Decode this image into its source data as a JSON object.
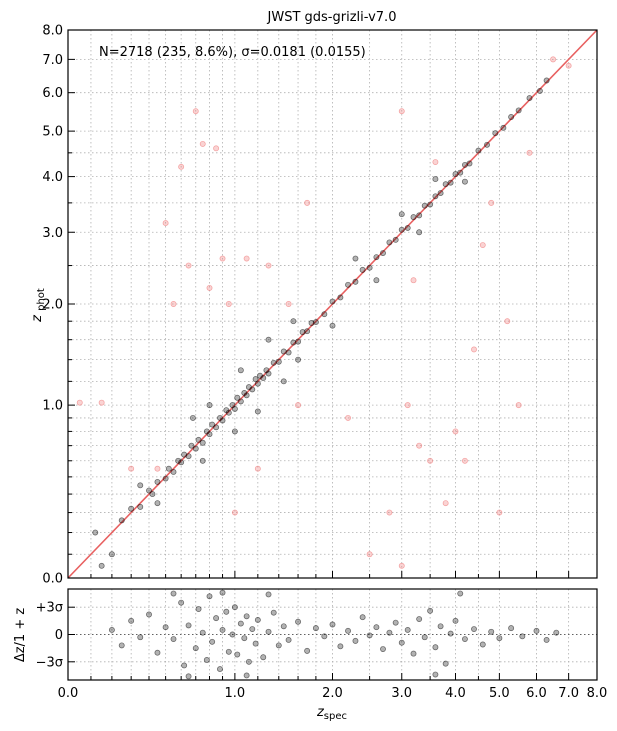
{
  "chart_data": [
    {
      "type": "scatter",
      "title": "JWST gds-grizli-v7.0",
      "annotation": "N=2718 (235,  8.6%), σ=0.0181 (0.0155)",
      "xlabel": "z_spec",
      "ylabel": "z_phot",
      "axis_scale": "log(1+z)",
      "xlim": [
        0,
        8
      ],
      "ylim": [
        0,
        8
      ],
      "x_tick_labels": [
        "0.0",
        "1.0",
        "2.0",
        "3.0",
        "4.0",
        "5.0",
        "6.0",
        "7.0",
        "8.0"
      ],
      "y_tick_labels": [
        "0.0",
        "1.0",
        "2.0",
        "3.0",
        "4.0",
        "5.0",
        "6.0",
        "7.0",
        "8.0"
      ],
      "grid": true,
      "one_to_one_line": {
        "color": "#e86060"
      },
      "series": [
        {
          "role": "good",
          "color": "#000000",
          "points": [
            [
              0.25,
              0.26
            ],
            [
              0.3,
              0.32
            ],
            [
              0.35,
              0.33
            ],
            [
              0.4,
              0.42
            ],
            [
              0.42,
              0.4
            ],
            [
              0.45,
              0.47
            ],
            [
              0.5,
              0.49
            ],
            [
              0.52,
              0.55
            ],
            [
              0.55,
              0.53
            ],
            [
              0.58,
              0.6
            ],
            [
              0.6,
              0.59
            ],
            [
              0.62,
              0.64
            ],
            [
              0.65,
              0.63
            ],
            [
              0.67,
              0.7
            ],
            [
              0.7,
              0.68
            ],
            [
              0.72,
              0.74
            ],
            [
              0.75,
              0.72
            ],
            [
              0.78,
              0.8
            ],
            [
              0.8,
              0.78
            ],
            [
              0.82,
              0.85
            ],
            [
              0.85,
              0.83
            ],
            [
              0.88,
              0.9
            ],
            [
              0.9,
              0.88
            ],
            [
              0.93,
              0.96
            ],
            [
              0.95,
              0.94
            ],
            [
              0.98,
              1.0
            ],
            [
              1.0,
              0.97
            ],
            [
              1.02,
              1.06
            ],
            [
              1.05,
              1.03
            ],
            [
              1.08,
              1.1
            ],
            [
              1.1,
              1.08
            ],
            [
              1.12,
              1.15
            ],
            [
              1.15,
              1.13
            ],
            [
              1.18,
              1.22
            ],
            [
              1.2,
              1.18
            ],
            [
              1.22,
              1.25
            ],
            [
              1.25,
              1.23
            ],
            [
              1.28,
              1.3
            ],
            [
              1.3,
              1.27
            ],
            [
              1.35,
              1.37
            ],
            [
              1.4,
              1.38
            ],
            [
              1.45,
              1.48
            ],
            [
              1.5,
              1.47
            ],
            [
              1.55,
              1.57
            ],
            [
              1.6,
              1.58
            ],
            [
              1.65,
              1.68
            ],
            [
              1.7,
              1.69
            ],
            [
              1.75,
              1.78
            ],
            [
              1.8,
              1.79
            ],
            [
              1.9,
              1.88
            ],
            [
              2.0,
              2.03
            ],
            [
              2.1,
              2.08
            ],
            [
              2.2,
              2.24
            ],
            [
              2.3,
              2.28
            ],
            [
              2.4,
              2.44
            ],
            [
              2.5,
              2.47
            ],
            [
              2.6,
              2.62
            ],
            [
              2.7,
              2.68
            ],
            [
              2.8,
              2.84
            ],
            [
              2.9,
              2.88
            ],
            [
              3.0,
              3.04
            ],
            [
              3.1,
              3.07
            ],
            [
              3.2,
              3.25
            ],
            [
              3.3,
              3.28
            ],
            [
              3.4,
              3.45
            ],
            [
              3.5,
              3.47
            ],
            [
              3.6,
              3.62
            ],
            [
              3.7,
              3.68
            ],
            [
              3.8,
              3.85
            ],
            [
              3.9,
              3.88
            ],
            [
              4.0,
              4.05
            ],
            [
              4.1,
              4.08
            ],
            [
              4.2,
              4.24
            ],
            [
              4.3,
              4.27
            ],
            [
              4.5,
              4.55
            ],
            [
              4.7,
              4.68
            ],
            [
              4.9,
              4.95
            ],
            [
              5.1,
              5.08
            ],
            [
              5.3,
              5.35
            ],
            [
              5.5,
              5.52
            ],
            [
              5.8,
              5.85
            ],
            [
              6.1,
              6.05
            ],
            [
              6.3,
              6.35
            ],
            [
              0.68,
              0.9
            ],
            [
              0.75,
              0.6
            ],
            [
              1.05,
              1.3
            ],
            [
              1.2,
              0.95
            ],
            [
              1.45,
              1.2
            ],
            [
              1.3,
              1.6
            ],
            [
              2.0,
              1.75
            ],
            [
              2.3,
              2.6
            ],
            [
              2.6,
              2.3
            ],
            [
              3.3,
              3.0
            ],
            [
              3.6,
              3.95
            ],
            [
              4.2,
              3.9
            ],
            [
              0.15,
              0.05
            ],
            [
              0.12,
              0.2
            ],
            [
              0.2,
              0.1
            ],
            [
              0.35,
              0.45
            ],
            [
              0.45,
              0.35
            ],
            [
              0.8,
              1.0
            ],
            [
              1.0,
              0.8
            ],
            [
              1.6,
              1.4
            ],
            [
              1.55,
              1.8
            ],
            [
              3.0,
              3.3
            ]
          ]
        },
        {
          "role": "outlier",
          "color": "#f08080",
          "points": [
            [
              0.05,
              1.02
            ],
            [
              0.15,
              1.02
            ],
            [
              0.3,
              0.55
            ],
            [
              0.45,
              0.55
            ],
            [
              0.5,
              3.15
            ],
            [
              0.55,
              2.0
            ],
            [
              0.6,
              4.2
            ],
            [
              0.65,
              2.5
            ],
            [
              0.7,
              5.5
            ],
            [
              0.75,
              4.7
            ],
            [
              0.8,
              2.2
            ],
            [
              0.85,
              4.6
            ],
            [
              0.9,
              2.6
            ],
            [
              0.95,
              2.0
            ],
            [
              1.0,
              0.3
            ],
            [
              1.1,
              2.6
            ],
            [
              1.2,
              0.55
            ],
            [
              1.3,
              2.5
            ],
            [
              1.5,
              2.0
            ],
            [
              1.7,
              3.5
            ],
            [
              1.6,
              1.0
            ],
            [
              2.2,
              0.9
            ],
            [
              2.5,
              0.1
            ],
            [
              2.8,
              0.3
            ],
            [
              3.0,
              0.05
            ],
            [
              3.0,
              5.5
            ],
            [
              3.1,
              1.0
            ],
            [
              3.2,
              2.3
            ],
            [
              3.3,
              0.7
            ],
            [
              3.5,
              0.6
            ],
            [
              3.6,
              4.3
            ],
            [
              3.8,
              0.35
            ],
            [
              4.0,
              0.8
            ],
            [
              4.2,
              0.6
            ],
            [
              4.4,
              1.5
            ],
            [
              4.6,
              2.8
            ],
            [
              4.8,
              3.5
            ],
            [
              5.0,
              0.3
            ],
            [
              5.2,
              1.8
            ],
            [
              5.5,
              1.0
            ],
            [
              5.8,
              4.5
            ],
            [
              6.5,
              7.0
            ],
            [
              7.0,
              6.8
            ]
          ]
        }
      ]
    },
    {
      "type": "scatter",
      "xlabel": "z_spec",
      "ylabel": "Δz/1 + z",
      "axis_scale": "log(1+z)",
      "xlim": [
        0,
        8
      ],
      "ylim": [
        -5,
        5
      ],
      "x_tick_labels": [
        "0.0",
        "1.0",
        "2.0",
        "3.0",
        "4.0",
        "5.0",
        "6.0",
        "7.0",
        "8.0"
      ],
      "y_tick_labels": [
        "+3σ",
        "0",
        "−3σ"
      ],
      "y_tick_values": [
        3,
        0,
        -3
      ],
      "grid": true,
      "series": [
        {
          "role": "residual",
          "color": "#000000",
          "points": [
            [
              0.2,
              0.5
            ],
            [
              0.25,
              -1.2
            ],
            [
              0.3,
              1.5
            ],
            [
              0.35,
              -0.3
            ],
            [
              0.4,
              2.2
            ],
            [
              0.45,
              -2.0
            ],
            [
              0.5,
              0.8
            ],
            [
              0.55,
              -0.5
            ],
            [
              0.6,
              3.5
            ],
            [
              0.62,
              -3.4
            ],
            [
              0.65,
              1.0
            ],
            [
              0.7,
              -1.5
            ],
            [
              0.72,
              2.8
            ],
            [
              0.75,
              0.2
            ],
            [
              0.78,
              -2.8
            ],
            [
              0.8,
              4.2
            ],
            [
              0.82,
              -0.8
            ],
            [
              0.85,
              1.8
            ],
            [
              0.88,
              -3.8
            ],
            [
              0.9,
              0.5
            ],
            [
              0.93,
              2.5
            ],
            [
              0.95,
              -1.9
            ],
            [
              0.98,
              0.0
            ],
            [
              1.0,
              3.0
            ],
            [
              1.02,
              -2.2
            ],
            [
              1.05,
              1.2
            ],
            [
              1.08,
              -0.4
            ],
            [
              1.1,
              2.0
            ],
            [
              1.12,
              -3.0
            ],
            [
              1.15,
              0.6
            ],
            [
              1.18,
              -1.0
            ],
            [
              1.2,
              1.6
            ],
            [
              1.25,
              -2.5
            ],
            [
              1.3,
              0.3
            ],
            [
              1.35,
              2.4
            ],
            [
              1.4,
              -1.2
            ],
            [
              1.45,
              0.9
            ],
            [
              1.5,
              -0.6
            ],
            [
              1.6,
              1.4
            ],
            [
              1.7,
              -1.8
            ],
            [
              1.8,
              0.7
            ],
            [
              1.9,
              -0.2
            ],
            [
              2.0,
              1.1
            ],
            [
              2.1,
              -1.3
            ],
            [
              2.2,
              0.4
            ],
            [
              2.3,
              -0.7
            ],
            [
              2.4,
              1.9
            ],
            [
              2.5,
              -0.1
            ],
            [
              2.6,
              0.8
            ],
            [
              2.7,
              -1.6
            ],
            [
              2.8,
              0.2
            ],
            [
              2.9,
              1.3
            ],
            [
              3.0,
              -0.9
            ],
            [
              3.1,
              0.5
            ],
            [
              3.2,
              -2.1
            ],
            [
              3.3,
              1.7
            ],
            [
              3.4,
              -0.3
            ],
            [
              3.5,
              2.6
            ],
            [
              3.6,
              -1.4
            ],
            [
              3.7,
              0.9
            ],
            [
              3.8,
              -3.2
            ],
            [
              3.9,
              0.1
            ],
            [
              4.0,
              1.5
            ],
            [
              4.2,
              -0.5
            ],
            [
              4.4,
              0.6
            ],
            [
              4.6,
              -1.1
            ],
            [
              4.8,
              0.3
            ],
            [
              5.0,
              -0.4
            ],
            [
              5.3,
              0.7
            ],
            [
              5.6,
              -0.2
            ],
            [
              6.0,
              0.4
            ],
            [
              6.3,
              -0.6
            ],
            [
              6.6,
              0.2
            ],
            [
              0.55,
              4.5
            ],
            [
              0.65,
              -4.6
            ],
            [
              0.9,
              4.6
            ],
            [
              1.1,
              -4.5
            ],
            [
              1.3,
              4.4
            ],
            [
              3.6,
              -4.4
            ],
            [
              4.1,
              4.5
            ]
          ]
        }
      ]
    }
  ]
}
